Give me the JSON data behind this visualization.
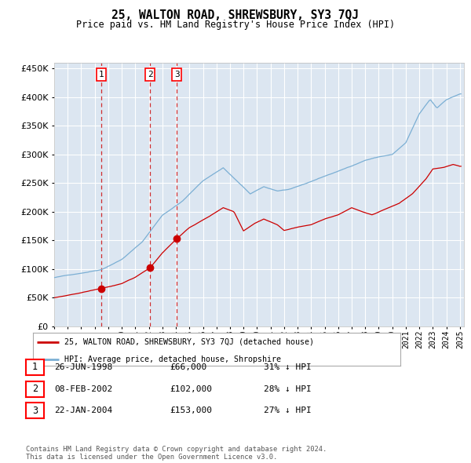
{
  "title": "25, WALTON ROAD, SHREWSBURY, SY3 7QJ",
  "subtitle": "Price paid vs. HM Land Registry's House Price Index (HPI)",
  "legend_label_red": "25, WALTON ROAD, SHREWSBURY, SY3 7QJ (detached house)",
  "legend_label_blue": "HPI: Average price, detached house, Shropshire",
  "sale_dates_float": [
    1998.49,
    2002.1,
    2004.07
  ],
  "sale_prices": [
    66000,
    102000,
    153000
  ],
  "sale_labels": [
    "1",
    "2",
    "3"
  ],
  "sale_table": [
    [
      "1",
      "26-JUN-1998",
      "£66,000",
      "31% ↓ HPI"
    ],
    [
      "2",
      "08-FEB-2002",
      "£102,000",
      "28% ↓ HPI"
    ],
    [
      "3",
      "22-JAN-2004",
      "£153,000",
      "27% ↓ HPI"
    ]
  ],
  "footer": "Contains HM Land Registry data © Crown copyright and database right 2024.\nThis data is licensed under the Open Government Licence v3.0.",
  "hpi_color": "#7bafd4",
  "price_color": "#cc0000",
  "background_color": "#dce6f1",
  "grid_color": "#ffffff",
  "ylim": [
    0,
    460000
  ],
  "yticks": [
    0,
    50000,
    100000,
    150000,
    200000,
    250000,
    300000,
    350000,
    400000,
    450000
  ],
  "xlim": [
    1995,
    2025.3
  ]
}
